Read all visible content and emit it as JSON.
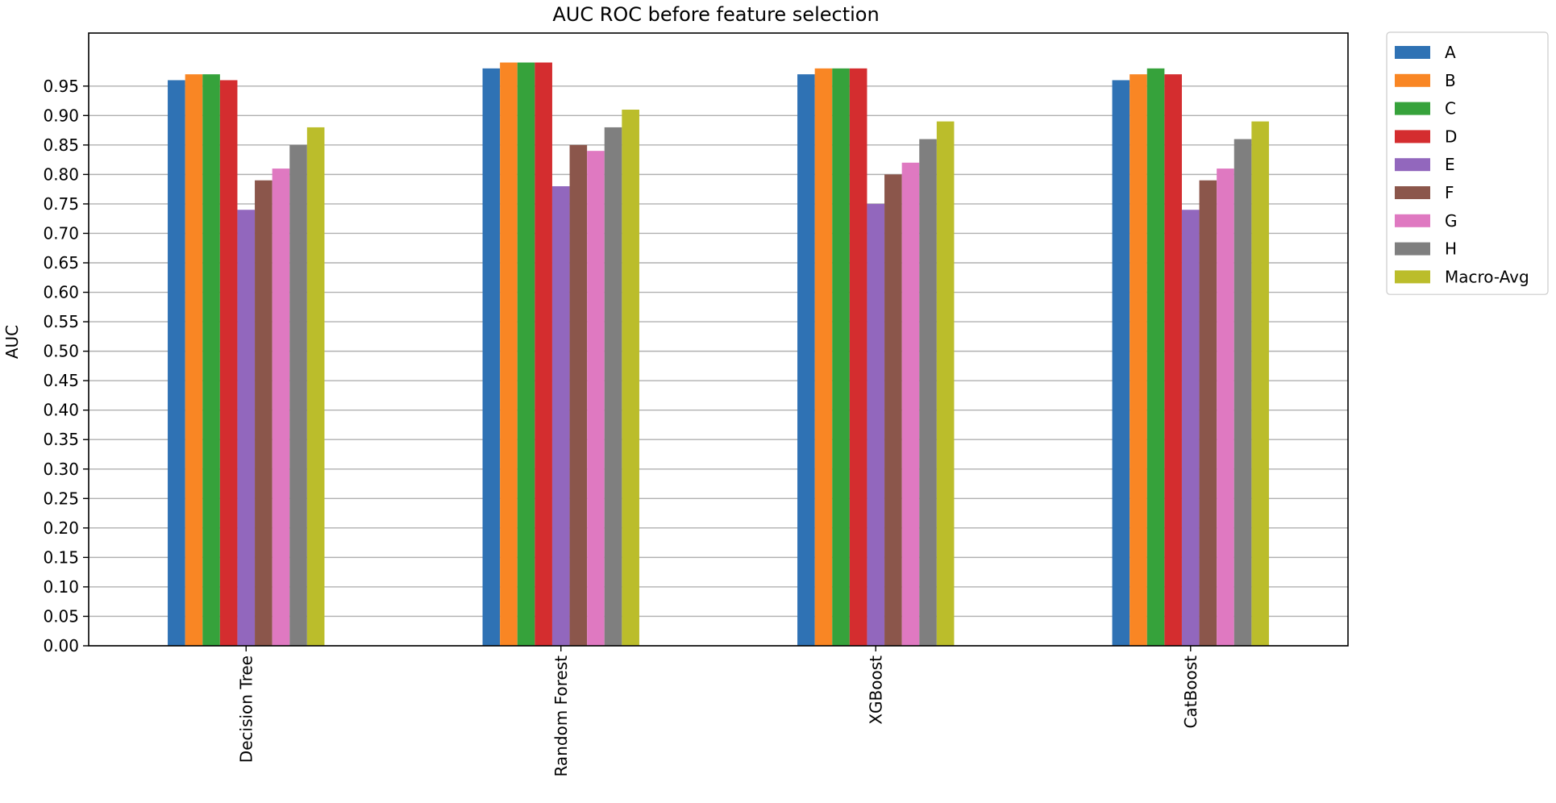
{
  "chart_data": {
    "type": "bar",
    "title": "AUC ROC before feature selection",
    "xlabel": "",
    "ylabel": "AUC",
    "categories": [
      "Decision Tree",
      "Random Forest",
      "XGBoost",
      "CatBoost"
    ],
    "ylim": [
      0,
      1.04
    ],
    "yticks": [
      "0.00",
      "0.05",
      "0.10",
      "0.15",
      "0.20",
      "0.25",
      "0.30",
      "0.35",
      "0.40",
      "0.45",
      "0.50",
      "0.55",
      "0.60",
      "0.65",
      "0.70",
      "0.75",
      "0.80",
      "0.85",
      "0.90",
      "0.95"
    ],
    "grid": "horizontal",
    "legend_position": "outside top-right",
    "series": [
      {
        "name": "A",
        "color": "#2f72b4",
        "values": [
          0.96,
          0.98,
          0.97,
          0.96
        ]
      },
      {
        "name": "B",
        "color": "#f98624",
        "values": [
          0.97,
          0.99,
          0.98,
          0.97
        ]
      },
      {
        "name": "C",
        "color": "#36a23b",
        "values": [
          0.97,
          0.99,
          0.98,
          0.98
        ]
      },
      {
        "name": "D",
        "color": "#d42d2f",
        "values": [
          0.96,
          0.99,
          0.98,
          0.97
        ]
      },
      {
        "name": "E",
        "color": "#9267bd",
        "values": [
          0.74,
          0.78,
          0.75,
          0.74
        ]
      },
      {
        "name": "F",
        "color": "#8b564b",
        "values": [
          0.79,
          0.85,
          0.8,
          0.79
        ]
      },
      {
        "name": "G",
        "color": "#df79c1",
        "values": [
          0.81,
          0.84,
          0.82,
          0.81
        ]
      },
      {
        "name": "H",
        "color": "#7f7f7f",
        "values": [
          0.85,
          0.88,
          0.86,
          0.86
        ]
      },
      {
        "name": "Macro-Avg",
        "color": "#bbbd2b",
        "values": [
          0.88,
          0.91,
          0.89,
          0.89
        ]
      }
    ]
  }
}
